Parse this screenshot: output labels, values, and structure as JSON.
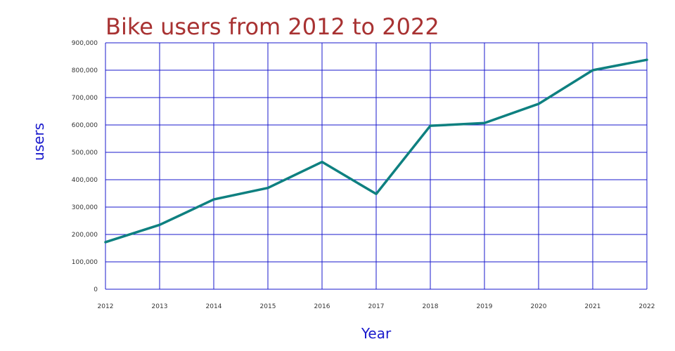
{
  "chart_data": {
    "type": "line",
    "title": "Bike users from 2012 to 2022",
    "xlabel": "Year",
    "ylabel": "users",
    "x": [
      "2012",
      "2013",
      "2014",
      "2015",
      "2016",
      "2017",
      "2018",
      "2019",
      "2020",
      "2021",
      "2022"
    ],
    "series": [
      {
        "values": [
          172000,
          235000,
          328000,
          370000,
          465000,
          348000,
          597000,
          607000,
          677000,
          800000,
          838000
        ]
      }
    ],
    "ylim": [
      0,
      900000
    ],
    "yticks": [
      0,
      100000,
      200000,
      300000,
      400000,
      500000,
      600000,
      700000,
      800000,
      900000
    ],
    "ytick_labels": [
      "0",
      "100,000",
      "200,000",
      "300,000",
      "400,000",
      "500,000",
      "600,000",
      "700,000",
      "800,000",
      "900,000"
    ],
    "grid": true,
    "legend": "none",
    "colors": {
      "line": "#0e8080",
      "grid": "#1a1acc",
      "title": "#a83232",
      "axis_label": "#1a1acc"
    }
  }
}
